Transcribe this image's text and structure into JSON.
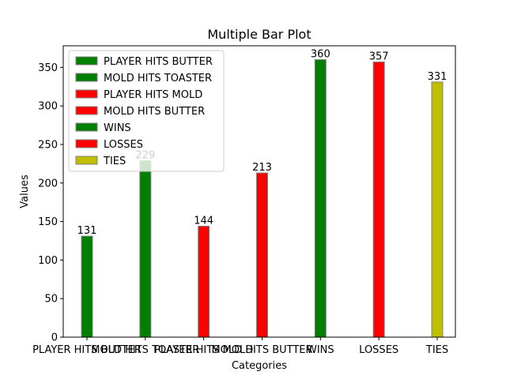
{
  "chart_data": {
    "type": "bar",
    "title": "Multiple Bar Plot",
    "xlabel": "Categories",
    "ylabel": "Values",
    "ylim": [
      0,
      378
    ],
    "yticks": [
      0,
      50,
      100,
      150,
      200,
      250,
      300,
      350
    ],
    "grid": false,
    "legend_position": "top-left",
    "categories": [
      "PLAYER HITS BUTTER",
      "MOLD HITS TOASTER",
      "PLAYER HITS MOLD",
      "MOLD HITS BUTTER",
      "WINS",
      "LOSSES",
      "TIES"
    ],
    "series": [
      {
        "name": "PLAYER HITS BUTTER",
        "values": [
          131,
          null,
          null,
          null,
          null,
          null,
          null
        ],
        "color": "#008000"
      },
      {
        "name": "MOLD HITS TOASTER",
        "values": [
          null,
          229,
          null,
          null,
          null,
          null,
          null
        ],
        "color": "#008000"
      },
      {
        "name": "PLAYER HITS MOLD",
        "values": [
          null,
          null,
          144,
          null,
          null,
          null,
          null
        ],
        "color": "#ff0000"
      },
      {
        "name": "MOLD HITS BUTTER",
        "values": [
          null,
          null,
          null,
          213,
          null,
          null,
          null
        ],
        "color": "#ff0000"
      },
      {
        "name": "WINS",
        "values": [
          null,
          null,
          null,
          null,
          360,
          null,
          null
        ],
        "color": "#008000"
      },
      {
        "name": "LOSSES",
        "values": [
          null,
          null,
          null,
          null,
          null,
          357,
          null
        ],
        "color": "#ff0000"
      },
      {
        "name": "TIES",
        "values": [
          null,
          null,
          null,
          null,
          null,
          null,
          331
        ],
        "color": "#bfbf00"
      }
    ],
    "bar_edge_color": "#808080"
  }
}
